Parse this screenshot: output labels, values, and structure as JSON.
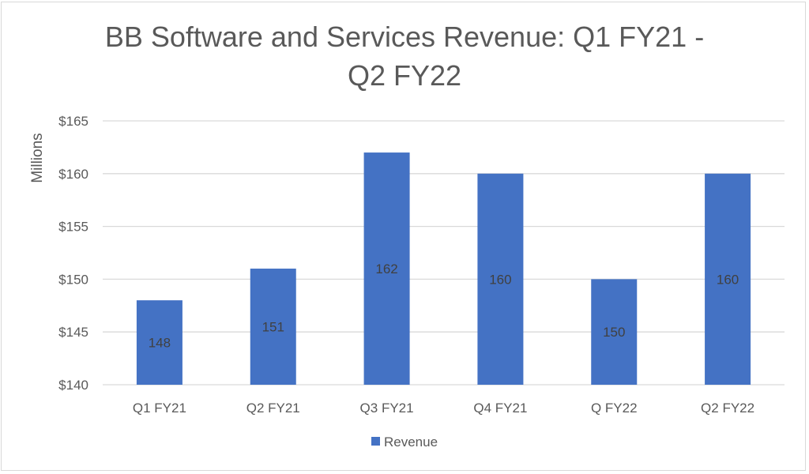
{
  "chart_data": {
    "type": "bar",
    "title": "BB Software and Services Revenue: Q1 FY21 - Q2 FY22",
    "title_lines": [
      "BB Software and Services Revenue: Q1 FY21 -",
      "Q2 FY22"
    ],
    "categories": [
      "Q1 FY21",
      "Q2 FY21",
      "Q3 FY21",
      "Q4 FY21",
      "Q FY22",
      "Q2 FY22"
    ],
    "series": [
      {
        "name": "Revenue",
        "values": [
          148,
          151,
          162,
          160,
          150,
          160
        ],
        "color": "#4472C4"
      }
    ],
    "data_labels": [
      "148",
      "151",
      "162",
      "160",
      "150",
      "160"
    ],
    "xlabel": "",
    "ylabel": "Millions",
    "ylim": [
      140,
      165
    ],
    "yticks": [
      140,
      145,
      150,
      155,
      160,
      165
    ],
    "ytick_labels": [
      "$140",
      "$145",
      "$150",
      "$155",
      "$160",
      "$165"
    ],
    "grid": true,
    "legend": {
      "position": "bottom",
      "entries": [
        "Revenue"
      ]
    }
  }
}
